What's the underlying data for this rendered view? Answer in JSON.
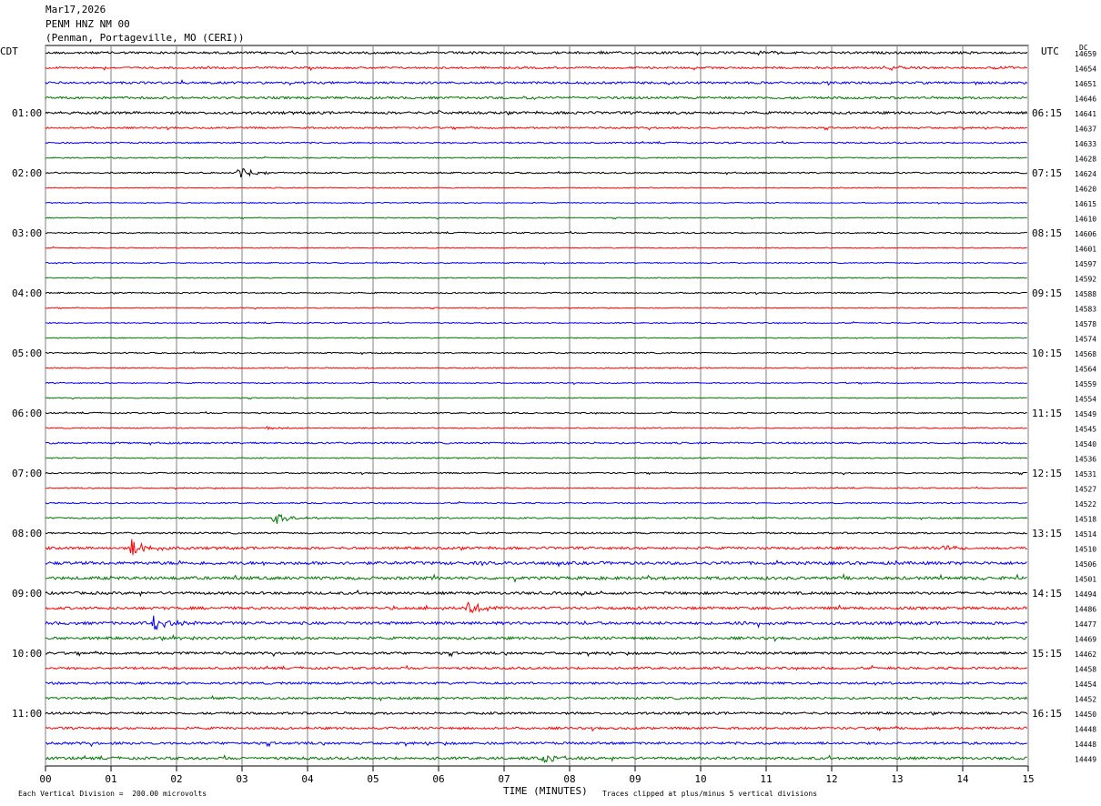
{
  "header": {
    "date": "Mar17,2026",
    "station": "PENM HNZ NM 00",
    "location": "(Penman, Portageville, MO (CERI))"
  },
  "left_timezone": "CDT",
  "right_timezone": "UTC",
  "dc_label": "DC",
  "chart_data": {
    "type": "line",
    "title": "",
    "xlabel": "TIME (MINUTES)",
    "x_ticks": [
      "00",
      "01",
      "02",
      "03",
      "04",
      "05",
      "06",
      "07",
      "08",
      "09",
      "10",
      "11",
      "12",
      "13",
      "14",
      "15"
    ],
    "xlim": [
      0,
      15
    ],
    "lines_per_hour": 4,
    "line_colors": [
      "#000000",
      "#ff0000",
      "#0000ff",
      "#007700"
    ],
    "left_hour_labels": [
      "01:00",
      "02:00",
      "03:00",
      "04:00",
      "05:00",
      "06:00",
      "07:00",
      "08:00",
      "09:00",
      "10:00",
      "11:00"
    ],
    "right_hour_labels": [
      "06:15",
      "07:15",
      "08:15",
      "09:15",
      "10:15",
      "11:15",
      "12:15",
      "13:15",
      "14:15",
      "15:15",
      "16:15"
    ],
    "dc_offsets": [
      "14659",
      "14654",
      "14651",
      "14646",
      "14641",
      "14637",
      "14633",
      "14628",
      "14624",
      "14620",
      "14615",
      "14610",
      "14606",
      "14601",
      "14597",
      "14592",
      "14588",
      "14583",
      "14578",
      "14574",
      "14568",
      "14564",
      "14559",
      "14554",
      "14549",
      "14545",
      "14540",
      "14536",
      "14531",
      "14527",
      "14522",
      "14518",
      "14514",
      "14510",
      "14506",
      "14501",
      "14494",
      "14486",
      "14477",
      "14469",
      "14462",
      "14458",
      "14454",
      "14452",
      "14450",
      "14448",
      "14448",
      "14449"
    ],
    "noise_levels": [
      1.2,
      1.0,
      1.2,
      1.2,
      1.3,
      0.9,
      0.8,
      0.6,
      0.8,
      0.5,
      0.5,
      0.5,
      0.7,
      0.5,
      0.6,
      0.5,
      0.7,
      0.5,
      0.6,
      0.5,
      0.7,
      0.6,
      0.6,
      0.5,
      0.7,
      0.6,
      0.9,
      0.6,
      0.7,
      0.6,
      0.7,
      0.8,
      0.9,
      1.3,
      1.6,
      1.6,
      1.4,
      1.4,
      1.5,
      1.4,
      1.3,
      1.2,
      1.2,
      1.2,
      1.2,
      1.2,
      1.3,
      1.4
    ],
    "events": [
      {
        "line": 0,
        "minute": 10.9,
        "amp": 2
      },
      {
        "line": 1,
        "minute": 12.8,
        "amp": 3
      },
      {
        "line": 1,
        "minute": 14.5,
        "amp": 2
      },
      {
        "line": 3,
        "minute": 7.3,
        "amp": 2
      },
      {
        "line": 4,
        "minute": 6.0,
        "amp": 2
      },
      {
        "line": 8,
        "minute": 2.95,
        "amp": 6
      },
      {
        "line": 25,
        "minute": 3.4,
        "amp": 2
      },
      {
        "line": 31,
        "minute": 3.5,
        "amp": 8
      },
      {
        "line": 33,
        "minute": 1.3,
        "amp": 10
      },
      {
        "line": 33,
        "minute": 13.7,
        "amp": 3
      },
      {
        "line": 37,
        "minute": 6.45,
        "amp": 8
      },
      {
        "line": 38,
        "minute": 1.65,
        "amp": 9
      },
      {
        "line": 38,
        "minute": 10.6,
        "amp": 3
      },
      {
        "line": 39,
        "minute": 1.9,
        "amp": 3
      },
      {
        "line": 47,
        "minute": 7.6,
        "amp": 5
      }
    ]
  },
  "footer": {
    "scale": "Each Vertical Division =  200.00 microvolts",
    "clip": "Traces clipped at plus/minus 5 vertical divisions"
  }
}
